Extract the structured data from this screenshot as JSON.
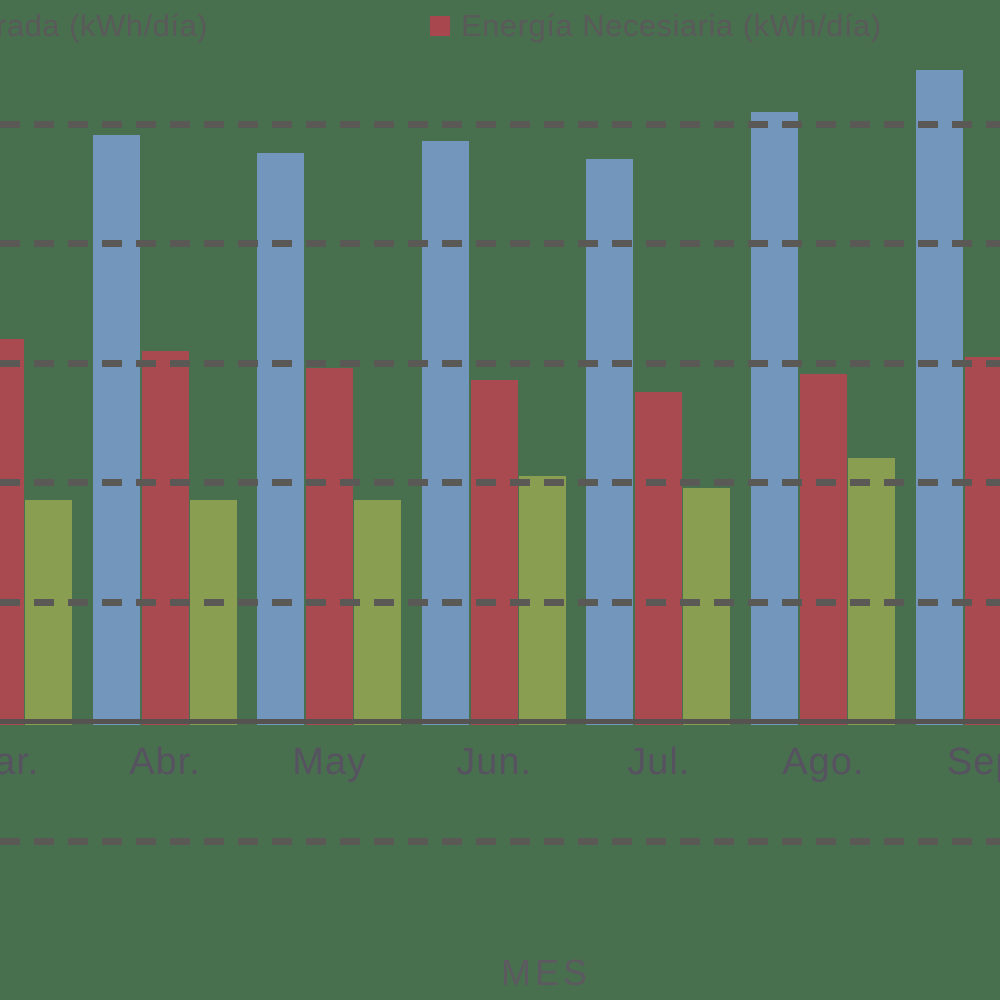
{
  "legend": {
    "left_item": {
      "visible_text": "rada (kWh/día)"
    },
    "right_item": {
      "label": "Energía Necesiaria (kWh/día)",
      "marker_color": "#a8484e"
    }
  },
  "chart_data": {
    "type": "bar",
    "title": "",
    "xlabel": "MES",
    "ylabel": "",
    "categories": [
      "Mar.",
      "Abr.",
      "May",
      "Jun.",
      "Jul.",
      "Ago.",
      "Sep."
    ],
    "series": [
      {
        "name": "rada (kWh/día)",
        "color": "#7397bc",
        "values": [
          null,
          4.9,
          4.75,
          4.85,
          4.7,
          5.1,
          5.45
        ]
      },
      {
        "name": "Energía Necesiaria (kWh/día)",
        "color": "#a84a50",
        "values": [
          3.2,
          3.1,
          2.95,
          2.85,
          2.75,
          2.9,
          3.05
        ]
      },
      {
        "name": "",
        "color": "#8a9e52",
        "values": [
          1.85,
          1.85,
          1.85,
          2.05,
          1.95,
          2.2,
          null
        ]
      }
    ],
    "ylim": [
      -1.6,
      6.1
    ],
    "gridline_values": [
      5,
      4,
      3,
      2,
      1,
      -1
    ],
    "grid_style": "dashed",
    "legend_position": "top",
    "colors": {
      "background": "#48704e",
      "gridline": "#5b5955",
      "axis_line": "#555250",
      "month_label": "#575260",
      "legend_text": "#5a5a5a",
      "xlabel_text": "#5c5960"
    }
  }
}
